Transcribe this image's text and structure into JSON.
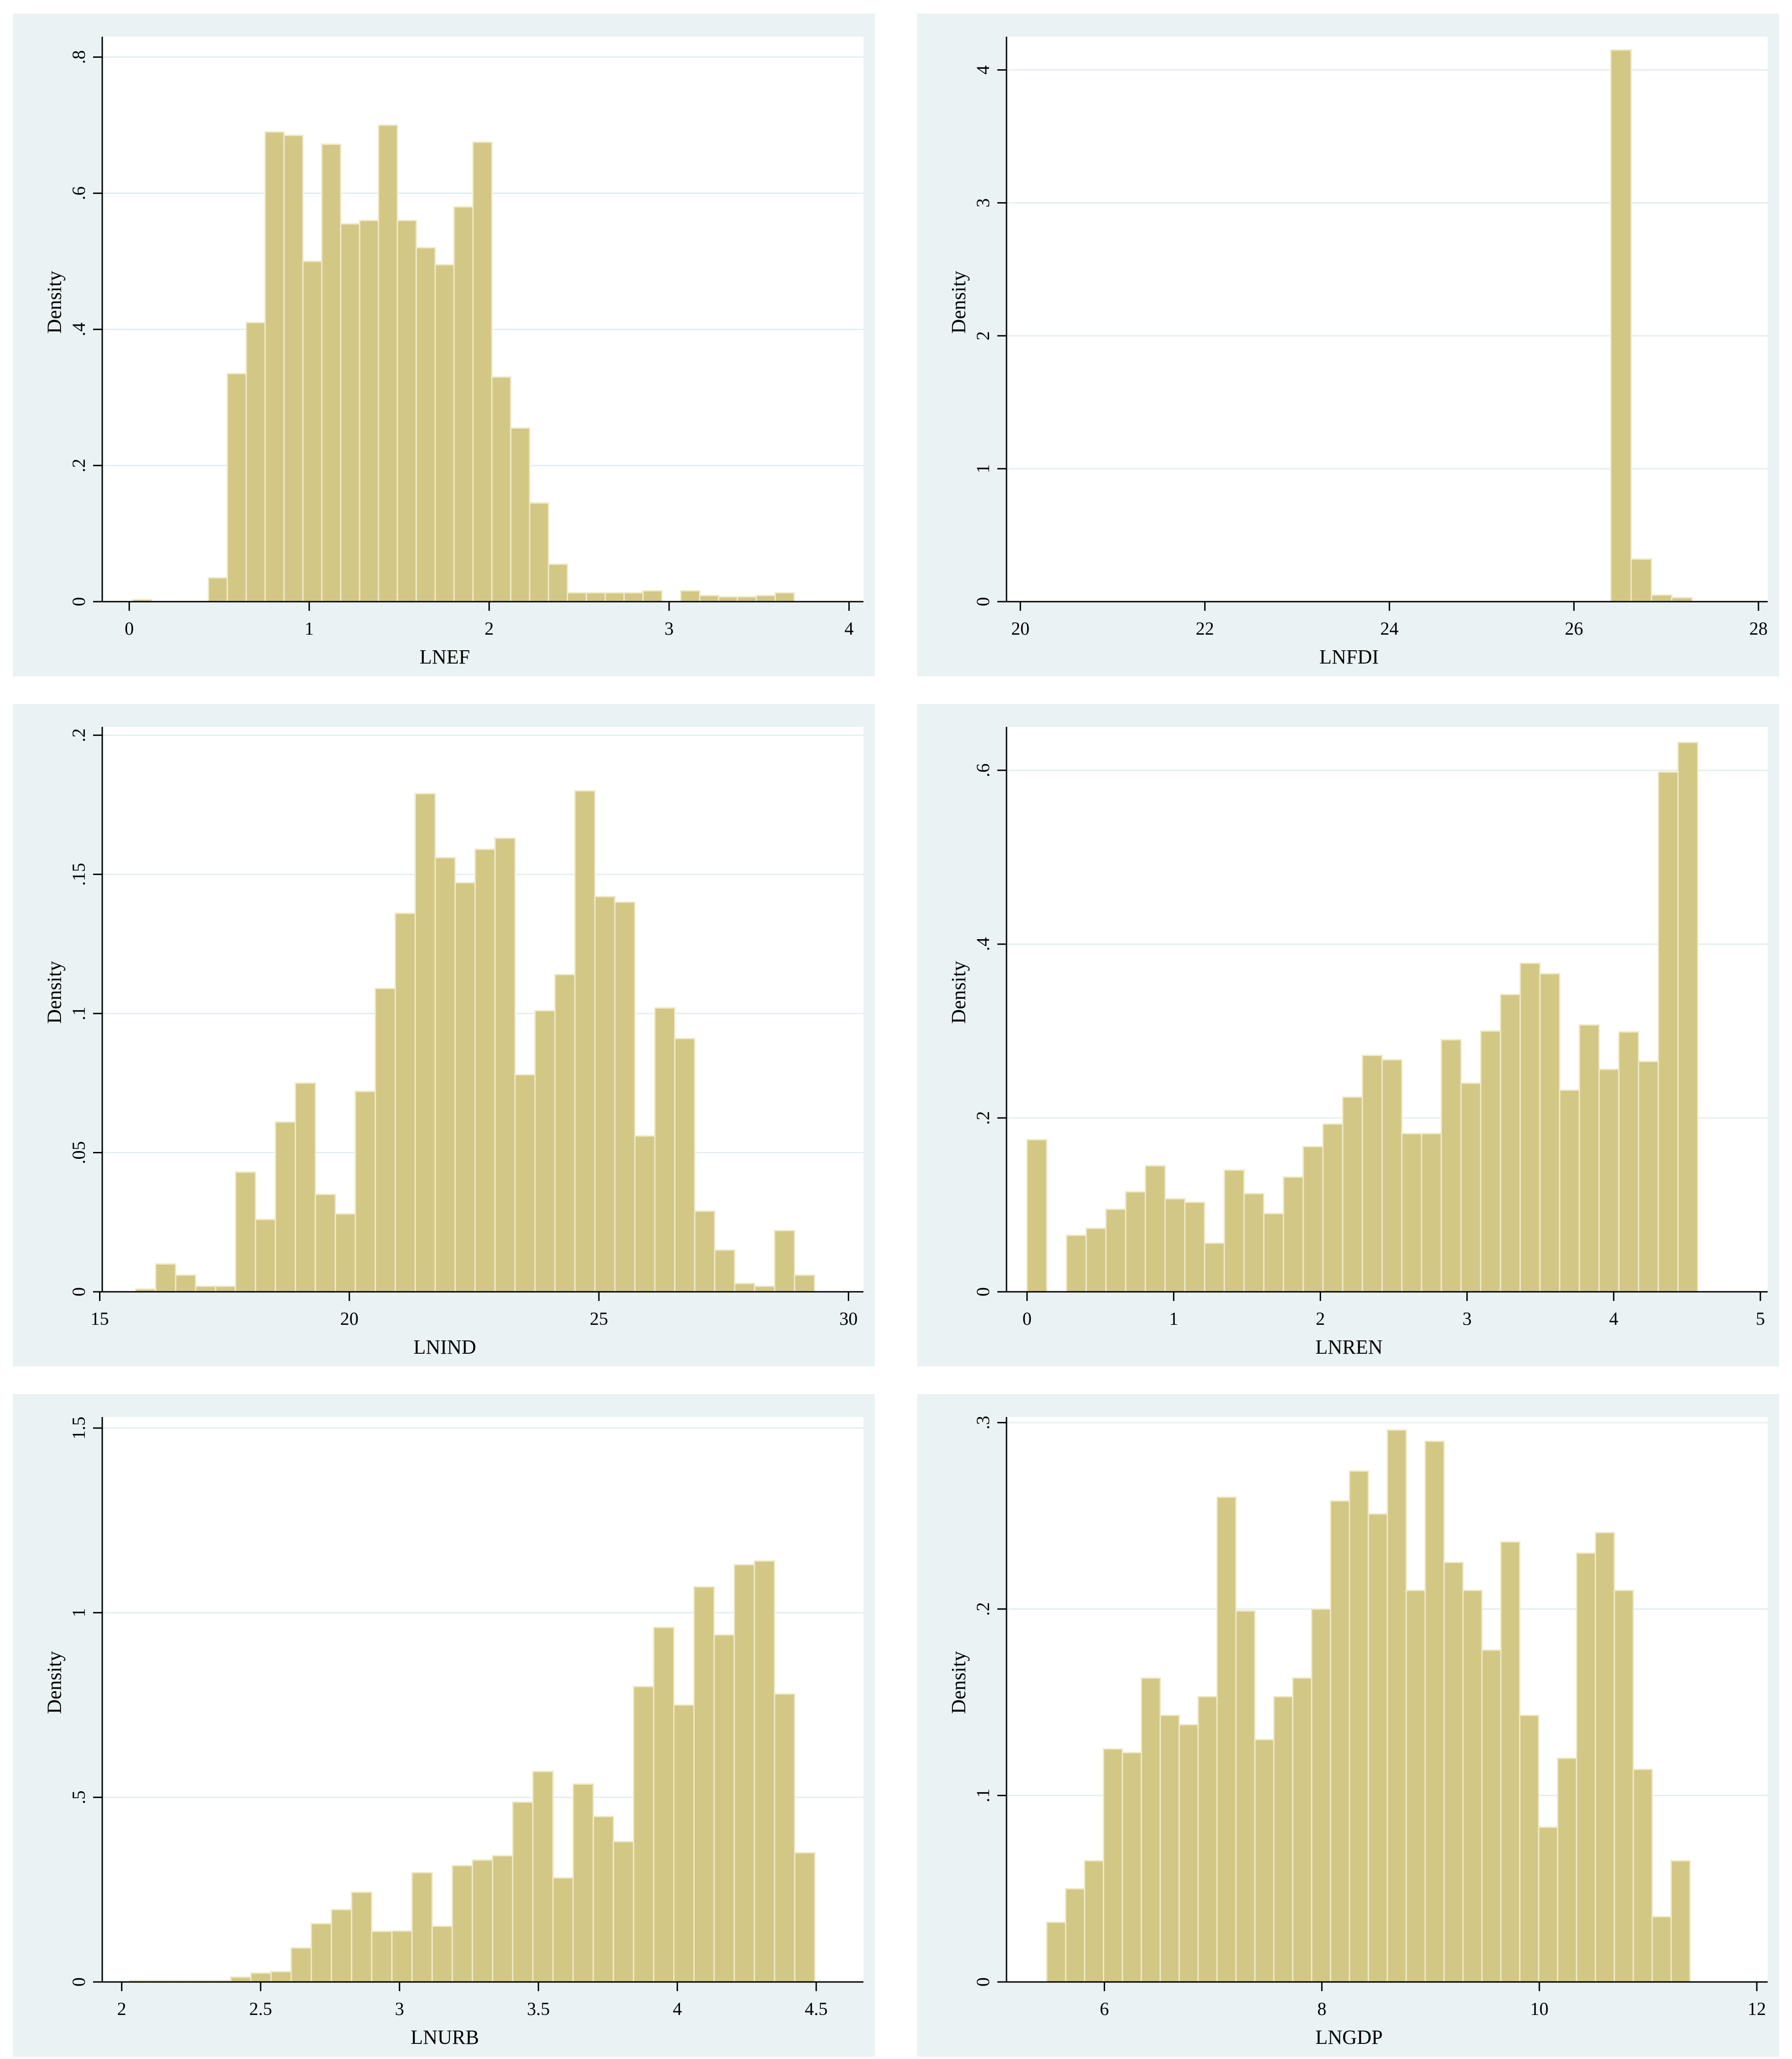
{
  "chart_data": [
    {
      "type": "bar",
      "xlabel": "LNEF",
      "ylabel": "Density",
      "xlim": [
        -0.15,
        4.08
      ],
      "ylim": [
        0,
        0.83
      ],
      "xticks": [
        0,
        1,
        2,
        3,
        4
      ],
      "xtick_labels": [
        "0",
        "1",
        "2",
        "3",
        "4"
      ],
      "yticks": [
        0,
        0.2,
        0.4,
        0.6,
        0.8
      ],
      "ytick_labels": [
        "0",
        ".2",
        ".4",
        ".6",
        ".8"
      ],
      "bar_color": "#d2c785",
      "bin_start": 0.02,
      "bin_width": 0.105,
      "values": [
        0.003,
        0,
        0,
        0,
        0.035,
        0.335,
        0.41,
        0.69,
        0.685,
        0.5,
        0.672,
        0.555,
        0.56,
        0.7,
        0.56,
        0.52,
        0.495,
        0.58,
        0.675,
        0.33,
        0.255,
        0.145,
        0.055,
        0.013,
        0.013,
        0.013,
        0.013,
        0.016,
        0,
        0.016,
        0.009,
        0.007,
        0.007,
        0.009,
        0.013
      ]
    },
    {
      "type": "bar",
      "xlabel": "LNFDI",
      "ylabel": "Density",
      "xlim": [
        19.85,
        28.1
      ],
      "ylim": [
        0,
        4.25
      ],
      "xticks": [
        20,
        22,
        24,
        26,
        28
      ],
      "xtick_labels": [
        "20",
        "22",
        "24",
        "26",
        "28"
      ],
      "yticks": [
        0,
        1,
        2,
        3,
        4
      ],
      "ytick_labels": [
        "0",
        "1",
        "2",
        "3",
        "4"
      ],
      "bar_color": "#d2c785",
      "bin_start": 26.4,
      "bin_width": 0.22,
      "values": [
        4.15,
        0.32,
        0.05,
        0.03
      ]
    },
    {
      "type": "bar",
      "xlabel": "LNIND",
      "ylabel": "Density",
      "xlim": [
        15.05,
        30.3
      ],
      "ylim": [
        0,
        0.203
      ],
      "xticks": [
        15,
        20,
        25,
        30
      ],
      "xtick_labels": [
        "15",
        "20",
        "25",
        "30"
      ],
      "yticks": [
        0,
        0.05,
        0.1,
        0.15,
        0.2
      ],
      "ytick_labels": [
        "0",
        ".05",
        ".1",
        ".15",
        ".2"
      ],
      "bar_color": "#d2c785",
      "bin_start": 15.72,
      "bin_width": 0.4,
      "values": [
        0.001,
        0.01,
        0.006,
        0.002,
        0.002,
        0.043,
        0.026,
        0.061,
        0.075,
        0.035,
        0.028,
        0.072,
        0.109,
        0.136,
        0.179,
        0.156,
        0.147,
        0.159,
        0.163,
        0.078,
        0.101,
        0.114,
        0.18,
        0.142,
        0.14,
        0.056,
        0.102,
        0.091,
        0.029,
        0.015,
        0.003,
        0.002,
        0.022,
        0.006
      ]
    },
    {
      "type": "bar",
      "xlabel": "LNREN",
      "ylabel": "Density",
      "xlim": [
        -0.14,
        5.05
      ],
      "ylim": [
        0,
        0.65
      ],
      "xticks": [
        0,
        1,
        2,
        3,
        4,
        5
      ],
      "xtick_labels": [
        "0",
        "1",
        "2",
        "3",
        "4",
        "5"
      ],
      "yticks": [
        0,
        0.2,
        0.4,
        0.6
      ],
      "ytick_labels": [
        "0",
        ".2",
        ".4",
        ".6"
      ],
      "bar_color": "#d2c785",
      "bin_start": 0.0,
      "bin_width": 0.1345,
      "values": [
        0.175,
        0,
        0.065,
        0.073,
        0.095,
        0.115,
        0.145,
        0.107,
        0.103,
        0.056,
        0.14,
        0.113,
        0.09,
        0.132,
        0.167,
        0.193,
        0.224,
        0.272,
        0.267,
        0.182,
        0.182,
        0.29,
        0.24,
        0.3,
        0.342,
        0.378,
        0.366,
        0.232,
        0.307,
        0.256,
        0.299,
        0.265,
        0.598,
        0.632
      ]
    },
    {
      "type": "bar",
      "xlabel": "LNURB",
      "ylabel": "Density",
      "xlim": [
        1.93,
        4.67
      ],
      "ylim": [
        0,
        1.53
      ],
      "xticks": [
        2,
        2.5,
        3,
        3.5,
        4,
        4.5
      ],
      "xtick_labels": [
        "2",
        "2.5",
        "3",
        "3.5",
        "4",
        "4.5"
      ],
      "yticks": [
        0,
        0.5,
        1,
        1.5
      ],
      "ytick_labels": [
        "0",
        ".5",
        "1",
        "1.5"
      ],
      "bar_color": "#d2c785",
      "bin_start": 2.03,
      "bin_width": 0.0725,
      "values": [
        0.004,
        0.004,
        0.004,
        0.004,
        0.004,
        0.013,
        0.024,
        0.028,
        0.092,
        0.158,
        0.196,
        0.243,
        0.137,
        0.138,
        0.296,
        0.151,
        0.315,
        0.33,
        0.342,
        0.487,
        0.57,
        0.282,
        0.536,
        0.448,
        0.38,
        0.8,
        0.96,
        0.75,
        1.07,
        0.94,
        1.13,
        1.14,
        0.78,
        0.35
      ]
    },
    {
      "type": "bar",
      "xlabel": "LNGDP",
      "ylabel": "Density",
      "xlim": [
        5.1,
        12.1
      ],
      "ylim": [
        0,
        0.303
      ],
      "xticks": [
        6,
        8,
        10,
        12
      ],
      "xtick_labels": [
        "6",
        "8",
        "10",
        "12"
      ],
      "yticks": [
        0,
        0.1,
        0.2,
        0.3
      ],
      "ytick_labels": [
        "0",
        ".1",
        ".2",
        ".3"
      ],
      "bar_color": "#d2c785",
      "bin_start": 5.47,
      "bin_width": 0.174,
      "values": [
        0.032,
        0.05,
        0.065,
        0.125,
        0.123,
        0.163,
        0.143,
        0.138,
        0.153,
        0.26,
        0.199,
        0.13,
        0.153,
        0.163,
        0.2,
        0.258,
        0.274,
        0.251,
        0.296,
        0.21,
        0.29,
        0.225,
        0.21,
        0.178,
        0.236,
        0.143,
        0.083,
        0.12,
        0.23,
        0.241,
        0.21,
        0.114,
        0.035,
        0.065
      ]
    }
  ]
}
